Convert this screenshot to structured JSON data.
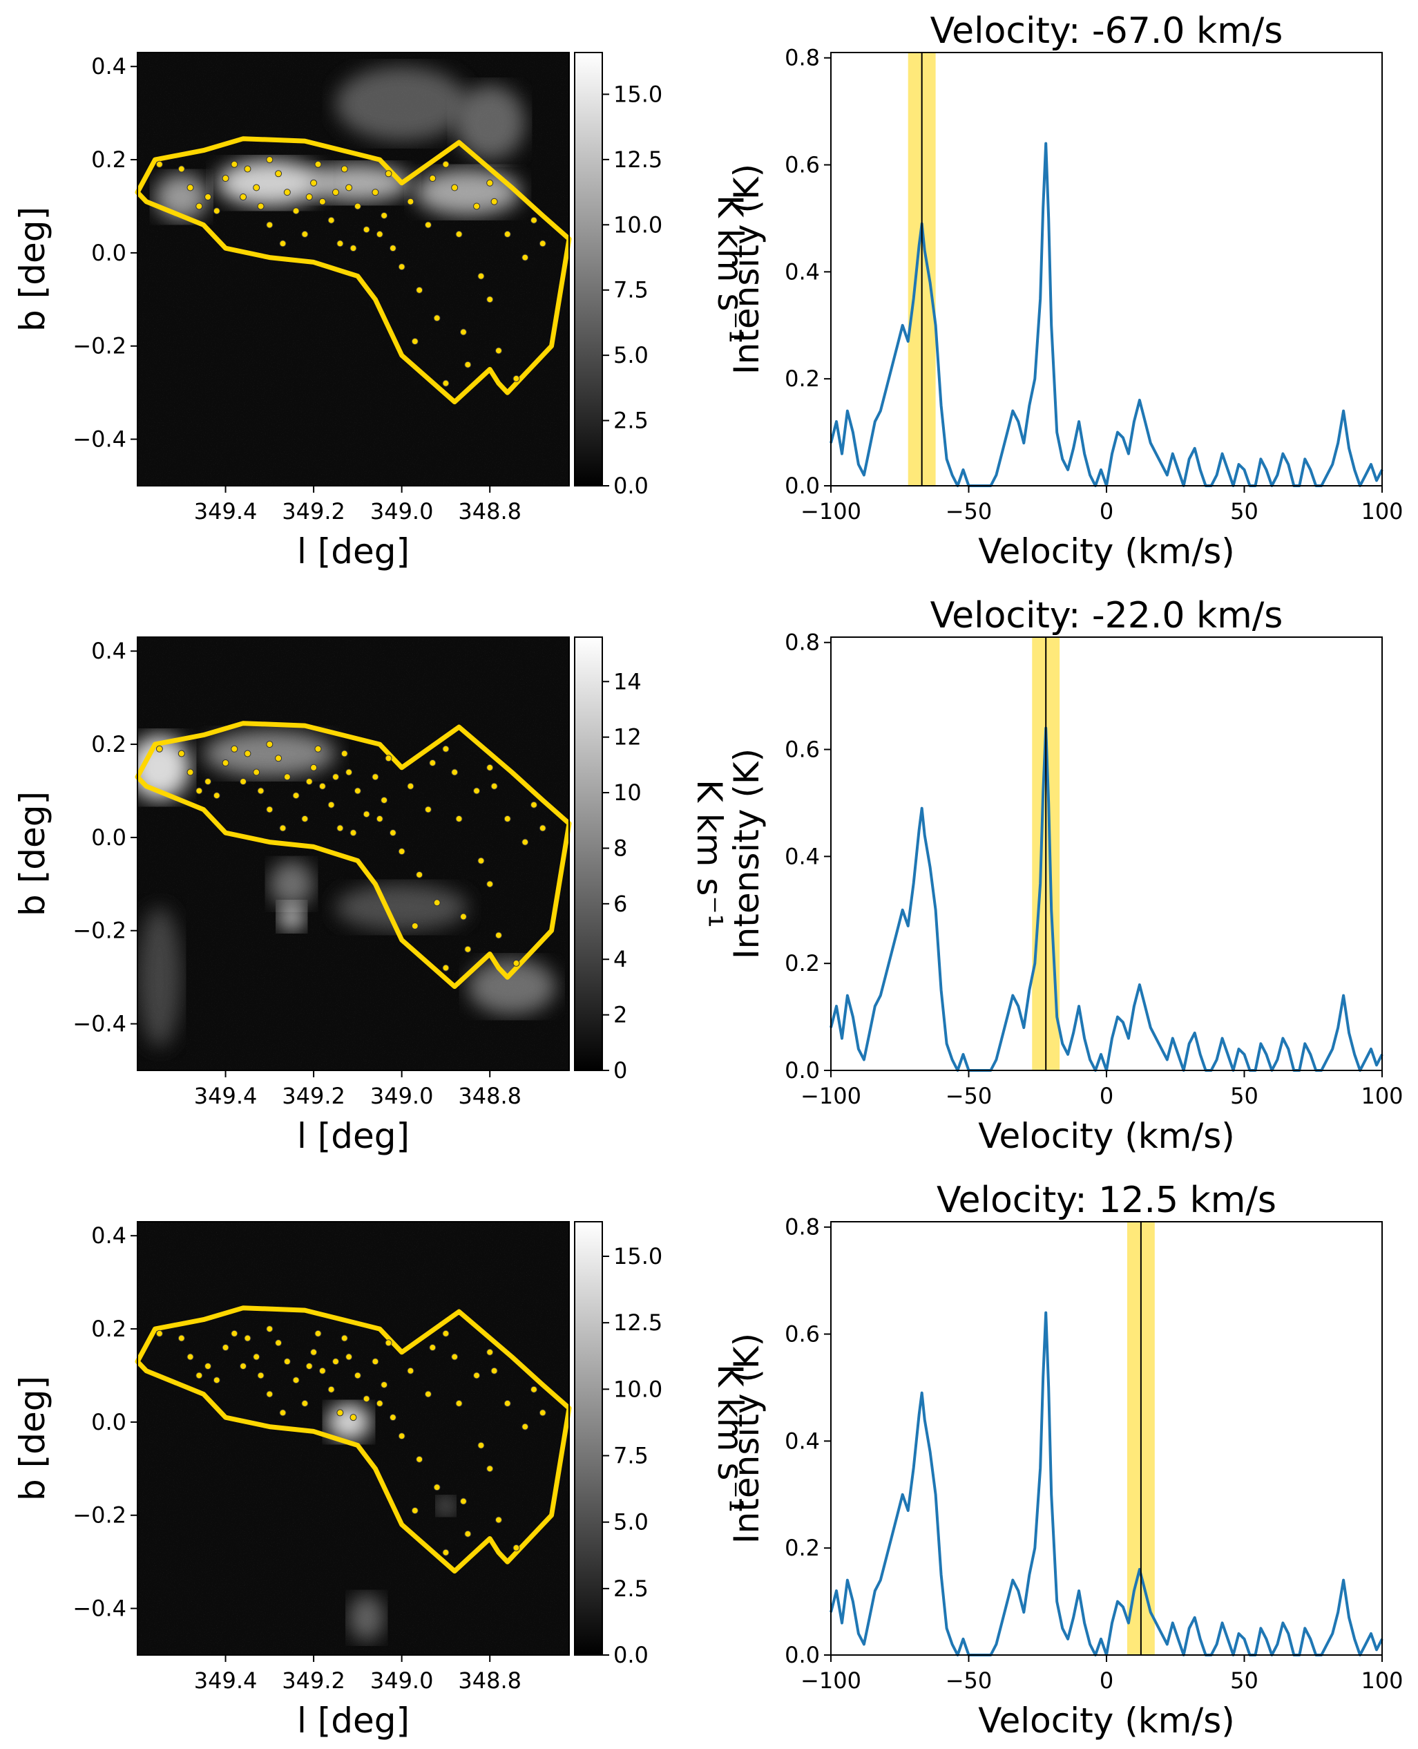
{
  "colors": {
    "polygon": "#FFD700",
    "band": "#FFE97A",
    "spectrum": "#1f77b4",
    "marker": "#000000",
    "points": "#FFD700",
    "map_background": "#0b0b0b"
  },
  "icons": {
    "polygon_region": "yellow-polygon-region",
    "sources": "yellow-dot-sources"
  },
  "chart_data": [
    {
      "type": "heatmap",
      "panel": "map-1",
      "xlabel": "l [deg]",
      "ylabel": "b [deg]",
      "xlim": [
        349.6,
        348.62
      ],
      "ylim": [
        -0.5,
        0.43
      ],
      "xticks": [
        349.4,
        349.2,
        349.0,
        348.8
      ],
      "xtick_labels": [
        "349.4",
        "349.2",
        "349.0",
        "348.8"
      ],
      "yticks": [
        0.4,
        0.2,
        0.0,
        -0.2,
        -0.4
      ],
      "ytick_labels": [
        "0.4",
        "0.2",
        "0.0",
        "−0.2",
        "−0.4"
      ],
      "colorbar": {
        "label": "K km s⁻¹",
        "range": [
          0,
          16.6
        ],
        "ticks": [
          0.0,
          2.5,
          5.0,
          7.5,
          10.0,
          12.5,
          15.0
        ],
        "tick_labels": [
          "0.0",
          "2.5",
          "5.0",
          "7.5",
          "10.0",
          "12.5",
          "15.0"
        ]
      }
    },
    {
      "type": "line",
      "panel": "spectrum-1",
      "title": "Velocity: -67.0 km/s",
      "xlabel": "Velocity (km/s)",
      "ylabel": "Intensity (K)",
      "xlim": [
        -100,
        100
      ],
      "ylim": [
        0,
        0.81
      ],
      "xticks": [
        -100,
        -50,
        0,
        50,
        100
      ],
      "xtick_labels": [
        "−100",
        "−50",
        "0",
        "50",
        "100"
      ],
      "yticks": [
        0.0,
        0.2,
        0.4,
        0.6,
        0.8
      ],
      "ytick_labels": [
        "0.0",
        "0.2",
        "0.4",
        "0.6",
        "0.8"
      ],
      "marker_velocity": -67.0,
      "band": [
        -72,
        -62
      ]
    },
    {
      "type": "heatmap",
      "panel": "map-2",
      "xlabel": "l [deg]",
      "ylabel": "b [deg]",
      "xlim": [
        349.6,
        348.62
      ],
      "ylim": [
        -0.5,
        0.43
      ],
      "xticks": [
        349.4,
        349.2,
        349.0,
        348.8
      ],
      "xtick_labels": [
        "349.4",
        "349.2",
        "349.0",
        "348.8"
      ],
      "yticks": [
        0.4,
        0.2,
        0.0,
        -0.2,
        -0.4
      ],
      "ytick_labels": [
        "0.4",
        "0.2",
        "0.0",
        "−0.2",
        "−0.4"
      ],
      "colorbar": {
        "label": "K km s⁻¹",
        "range": [
          0,
          15.6
        ],
        "ticks": [
          0,
          2,
          4,
          6,
          8,
          10,
          12,
          14
        ],
        "tick_labels": [
          "0",
          "2",
          "4",
          "6",
          "8",
          "10",
          "12",
          "14"
        ]
      }
    },
    {
      "type": "line",
      "panel": "spectrum-2",
      "title": "Velocity: -22.0 km/s",
      "xlabel": "Velocity (km/s)",
      "ylabel": "Intensity (K)",
      "xlim": [
        -100,
        100
      ],
      "ylim": [
        0,
        0.81
      ],
      "xticks": [
        -100,
        -50,
        0,
        50,
        100
      ],
      "xtick_labels": [
        "−100",
        "−50",
        "0",
        "50",
        "100"
      ],
      "yticks": [
        0.0,
        0.2,
        0.4,
        0.6,
        0.8
      ],
      "ytick_labels": [
        "0.0",
        "0.2",
        "0.4",
        "0.6",
        "0.8"
      ],
      "marker_velocity": -22.0,
      "band": [
        -27,
        -17
      ]
    },
    {
      "type": "heatmap",
      "panel": "map-3",
      "xlabel": "l [deg]",
      "ylabel": "b [deg]",
      "xlim": [
        349.6,
        348.62
      ],
      "ylim": [
        -0.5,
        0.43
      ],
      "xticks": [
        349.4,
        349.2,
        349.0,
        348.8
      ],
      "xtick_labels": [
        "349.4",
        "349.2",
        "349.0",
        "348.8"
      ],
      "yticks": [
        0.4,
        0.2,
        0.0,
        -0.2,
        -0.4
      ],
      "ytick_labels": [
        "0.4",
        "0.2",
        "0.0",
        "−0.2",
        "−0.4"
      ],
      "colorbar": {
        "label": "K km s⁻¹",
        "range": [
          0,
          16.3
        ],
        "ticks": [
          0.0,
          2.5,
          5.0,
          7.5,
          10.0,
          12.5,
          15.0
        ],
        "tick_labels": [
          "0.0",
          "2.5",
          "5.0",
          "7.5",
          "10.0",
          "12.5",
          "15.0"
        ]
      }
    },
    {
      "type": "line",
      "panel": "spectrum-3",
      "title": "Velocity: 12.5 km/s",
      "xlabel": "Velocity (km/s)",
      "ylabel": "Intensity (K)",
      "xlim": [
        -100,
        100
      ],
      "ylim": [
        0,
        0.81
      ],
      "xticks": [
        -100,
        -50,
        0,
        50,
        100
      ],
      "xtick_labels": [
        "−100",
        "−50",
        "0",
        "50",
        "100"
      ],
      "yticks": [
        0.0,
        0.2,
        0.4,
        0.6,
        0.8
      ],
      "ytick_labels": [
        "0.0",
        "0.2",
        "0.4",
        "0.6",
        "0.8"
      ],
      "marker_velocity": 12.5,
      "band": [
        7.5,
        17.5
      ]
    }
  ],
  "spectrum_profile": {
    "velocity": [
      -100,
      -98,
      -96,
      -94,
      -92,
      -90,
      -88,
      -86,
      -84,
      -82,
      -80,
      -78,
      -76,
      -74,
      -72,
      -70,
      -68,
      -67,
      -66,
      -64,
      -62,
      -60,
      -58,
      -56,
      -54,
      -52,
      -50,
      -48,
      -46,
      -44,
      -42,
      -40,
      -38,
      -36,
      -34,
      -32,
      -30,
      -28,
      -26,
      -24,
      -23,
      -22,
      -21,
      -20,
      -18,
      -16,
      -14,
      -12,
      -10,
      -8,
      -6,
      -4,
      -2,
      0,
      2,
      4,
      6,
      8,
      10,
      12,
      14,
      16,
      18,
      20,
      22,
      24,
      26,
      28,
      30,
      32,
      34,
      36,
      38,
      40,
      42,
      44,
      46,
      48,
      50,
      52,
      54,
      56,
      58,
      60,
      62,
      64,
      66,
      68,
      70,
      72,
      74,
      76,
      78,
      80,
      82,
      84,
      86,
      88,
      90,
      92,
      94,
      96,
      98,
      100
    ],
    "intensity": [
      0.08,
      0.12,
      0.06,
      0.14,
      0.1,
      0.04,
      0.02,
      0.07,
      0.12,
      0.14,
      0.18,
      0.22,
      0.26,
      0.3,
      0.27,
      0.35,
      0.45,
      0.49,
      0.44,
      0.38,
      0.3,
      0.15,
      0.05,
      0.02,
      0.0,
      0.03,
      0.0,
      0.0,
      0.0,
      0.0,
      0.0,
      0.02,
      0.06,
      0.1,
      0.14,
      0.12,
      0.08,
      0.15,
      0.2,
      0.35,
      0.52,
      0.64,
      0.5,
      0.3,
      0.1,
      0.05,
      0.03,
      0.07,
      0.12,
      0.06,
      0.02,
      0.0,
      0.03,
      0.0,
      0.06,
      0.1,
      0.09,
      0.06,
      0.12,
      0.16,
      0.12,
      0.08,
      0.06,
      0.04,
      0.02,
      0.06,
      0.03,
      0.0,
      0.05,
      0.07,
      0.03,
      0.0,
      0.0,
      0.02,
      0.06,
      0.03,
      0.0,
      0.04,
      0.03,
      0.0,
      0.0,
      0.05,
      0.03,
      0.0,
      0.02,
      0.06,
      0.04,
      0.0,
      0.0,
      0.05,
      0.03,
      0.0,
      0.0,
      0.02,
      0.04,
      0.08,
      0.14,
      0.07,
      0.03,
      0.0,
      0.02,
      0.04,
      0.01,
      0.03
    ]
  },
  "polygon_lb": [
    [
      349.6,
      0.13
    ],
    [
      349.56,
      0.2
    ],
    [
      349.45,
      0.22
    ],
    [
      349.36,
      0.245
    ],
    [
      349.22,
      0.24
    ],
    [
      349.05,
      0.2
    ],
    [
      349.0,
      0.15
    ],
    [
      348.87,
      0.237
    ],
    [
      348.75,
      0.14
    ],
    [
      348.68,
      0.08
    ],
    [
      348.62,
      0.03
    ],
    [
      348.66,
      -0.2
    ],
    [
      348.76,
      -0.3
    ],
    [
      348.78,
      -0.28
    ],
    [
      348.8,
      -0.25
    ],
    [
      348.88,
      -0.32
    ],
    [
      349.0,
      -0.22
    ],
    [
      349.06,
      -0.1
    ],
    [
      349.1,
      -0.05
    ],
    [
      349.2,
      -0.02
    ],
    [
      349.3,
      -0.01
    ],
    [
      349.4,
      0.01
    ],
    [
      349.45,
      0.06
    ],
    [
      349.58,
      0.11
    ]
  ],
  "points_lb": [
    [
      349.55,
      0.19
    ],
    [
      349.5,
      0.18
    ],
    [
      349.46,
      0.1
    ],
    [
      349.42,
      0.09
    ],
    [
      349.38,
      0.19
    ],
    [
      349.36,
      0.12
    ],
    [
      349.35,
      0.18
    ],
    [
      349.32,
      0.1
    ],
    [
      349.3,
      0.06
    ],
    [
      349.28,
      0.17
    ],
    [
      349.26,
      0.13
    ],
    [
      349.24,
      0.09
    ],
    [
      349.22,
      0.04
    ],
    [
      349.2,
      0.15
    ],
    [
      349.18,
      0.11
    ],
    [
      349.16,
      0.07
    ],
    [
      349.14,
      0.02
    ],
    [
      349.12,
      0.14
    ],
    [
      349.1,
      0.1
    ],
    [
      349.08,
      0.05
    ],
    [
      349.06,
      0.13
    ],
    [
      349.04,
      0.08
    ],
    [
      349.02,
      0.01
    ],
    [
      349.0,
      -0.03
    ],
    [
      348.98,
      0.11
    ],
    [
      348.96,
      -0.08
    ],
    [
      348.94,
      0.06
    ],
    [
      348.92,
      -0.14
    ],
    [
      348.9,
      0.19
    ],
    [
      348.88,
      0.14
    ],
    [
      348.86,
      -0.17
    ],
    [
      348.85,
      -0.24
    ],
    [
      348.83,
      0.1
    ],
    [
      348.82,
      -0.05
    ],
    [
      348.8,
      0.15
    ],
    [
      348.78,
      -0.21
    ],
    [
      348.76,
      0.04
    ],
    [
      348.74,
      -0.27
    ],
    [
      348.7,
      0.07
    ],
    [
      348.68,
      0.02
    ],
    [
      349.48,
      0.14
    ],
    [
      349.4,
      0.16
    ],
    [
      349.33,
      0.14
    ],
    [
      349.27,
      0.02
    ],
    [
      349.19,
      0.19
    ],
    [
      349.13,
      0.18
    ],
    [
      349.05,
      0.04
    ],
    [
      348.97,
      -0.19
    ],
    [
      348.9,
      -0.28
    ],
    [
      348.8,
      -0.1
    ],
    [
      349.44,
      0.12
    ],
    [
      349.3,
      0.2
    ],
    [
      349.21,
      0.12
    ],
    [
      349.15,
      0.13
    ],
    [
      349.11,
      0.01
    ],
    [
      349.03,
      0.17
    ],
    [
      348.93,
      0.16
    ],
    [
      348.87,
      0.04
    ],
    [
      348.79,
      0.11
    ],
    [
      348.72,
      -0.01
    ]
  ]
}
